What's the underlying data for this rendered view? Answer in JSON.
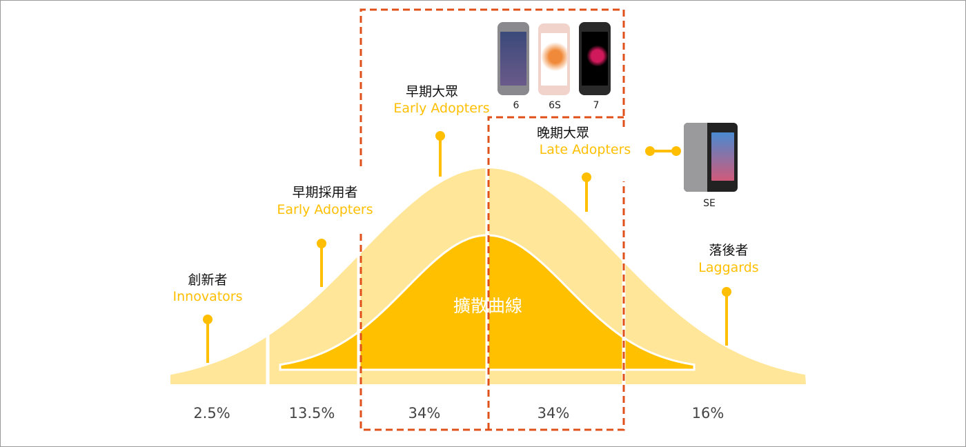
{
  "title": "擴散曲線",
  "colors": {
    "outer_curve": "#FFE699",
    "inner_curve": "#FFC000",
    "label_en": "#FFBF00",
    "dashed_box": "#E0501A"
  },
  "segments": [
    {
      "zh": "創新者",
      "en": "Innovators",
      "percent": "2.5%"
    },
    {
      "zh": "早期採用者",
      "en": "Early Adopters",
      "percent": "13.5%"
    },
    {
      "zh": "早期大眾",
      "en": "Early Adopters",
      "percent": "34%"
    },
    {
      "zh": "晚期大眾",
      "en": "Late Adopters",
      "percent": "34%"
    },
    {
      "zh": "落後者",
      "en": "Laggards",
      "percent": "16%"
    }
  ],
  "phones": [
    {
      "label": "6",
      "icon": "iphone-6-image"
    },
    {
      "label": "6S",
      "icon": "iphone-6s-image"
    },
    {
      "label": "7",
      "icon": "iphone-7-image"
    },
    {
      "label": "SE",
      "icon": "iphone-se-image"
    }
  ]
}
